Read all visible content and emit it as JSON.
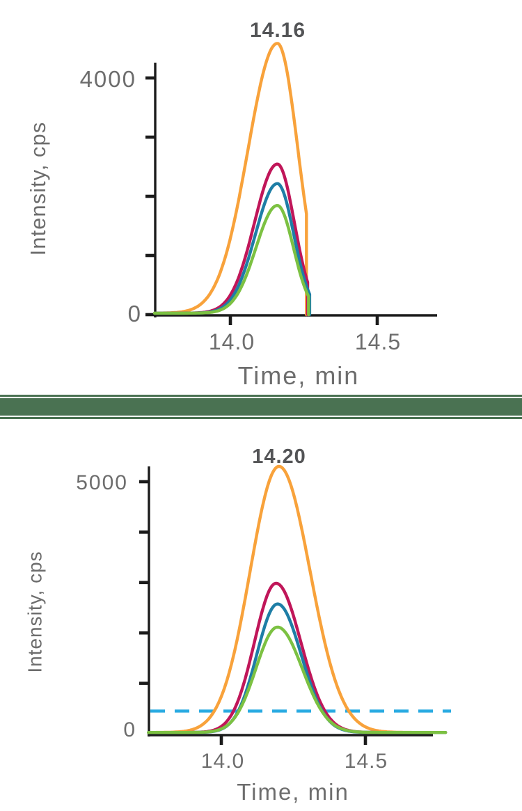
{
  "page": {
    "background": "#ffffff"
  },
  "divider": {
    "color": "#4a7252"
  },
  "chart_data": [
    {
      "type": "line",
      "id": "top-chromatogram",
      "peak_label": "14.16",
      "xlabel": "Time, min",
      "ylabel": "Intensity, cps",
      "x_range": [
        13.74,
        14.7
      ],
      "y_range": [
        0,
        4600
      ],
      "x_unit": "min",
      "y_unit": "cps",
      "grid": false,
      "legend": "none",
      "xticks": {
        "values": [
          14.0,
          14.5
        ],
        "labels": [
          "14.0",
          "14.5"
        ]
      },
      "yticks": {
        "values": [
          0,
          1000,
          2000,
          3000,
          4000
        ]
      },
      "y_axis": {
        "top_label": "4000",
        "zero_label": "0"
      },
      "axis_color": "#1b1b1b",
      "label_color": "#6d6d6d",
      "peak_label_color": "#535456",
      "baseline_cps": 25,
      "window_end_min": 14.27,
      "series": [
        {
          "name": "trace-orange",
          "color": "#f8a23b",
          "rt_min": 14.16,
          "peak_height_cps": 4560,
          "sigma_left": 0.1,
          "sigma_right": 0.07,
          "cut_at_min": 14.259
        },
        {
          "name": "trace-magenta",
          "color": "#c01659",
          "rt_min": 14.16,
          "peak_height_cps": 2520,
          "sigma_left": 0.078,
          "sigma_right": 0.058,
          "cut_at_min": 14.263
        },
        {
          "name": "trace-blue",
          "color": "#1e7ea6",
          "rt_min": 14.16,
          "peak_height_cps": 2190,
          "sigma_left": 0.075,
          "sigma_right": 0.056,
          "cut_at_min": 14.27
        },
        {
          "name": "trace-green",
          "color": "#7cc142",
          "rt_min": 14.16,
          "peak_height_cps": 1820,
          "sigma_left": 0.073,
          "sigma_right": 0.055,
          "cut_at_min": 14.266
        }
      ]
    },
    {
      "type": "line",
      "id": "bottom-chromatogram",
      "peak_label": "14.20",
      "xlabel": "Time, min",
      "ylabel": "Intensity, cps",
      "x_range": [
        13.75,
        14.78
      ],
      "y_range": [
        0,
        5400
      ],
      "x_unit": "min",
      "y_unit": "cps",
      "grid": false,
      "legend": "none",
      "xticks": {
        "values": [
          14.0,
          14.5
        ],
        "labels": [
          "14.0",
          "14.5"
        ]
      },
      "yticks": {
        "values": [
          1000,
          2000,
          3000,
          4000,
          5000
        ]
      },
      "y_axis": {
        "top_label": "5000",
        "zero_label": "0"
      },
      "axis_color": "#1b1b1b",
      "label_color": "#6d6d6d",
      "peak_label_color": "#535456",
      "baseline_cps": 25,
      "threshold_line": {
        "value_cps": 450,
        "color": "#2aabe2",
        "style": "dashed"
      },
      "series": [
        {
          "name": "trace-orange",
          "color": "#f8a23b",
          "rt_min": 14.2,
          "peak_height_cps": 5280,
          "sigma_left": 0.1,
          "sigma_right": 0.108
        },
        {
          "name": "trace-magenta",
          "color": "#c01659",
          "rt_min": 14.19,
          "peak_height_cps": 2960,
          "sigma_left": 0.075,
          "sigma_right": 0.086
        },
        {
          "name": "trace-blue",
          "color": "#1e7ea6",
          "rt_min": 14.195,
          "peak_height_cps": 2550,
          "sigma_left": 0.072,
          "sigma_right": 0.082
        },
        {
          "name": "trace-green",
          "color": "#7cc142",
          "rt_min": 14.195,
          "peak_height_cps": 2090,
          "sigma_left": 0.075,
          "sigma_right": 0.086
        }
      ]
    }
  ]
}
